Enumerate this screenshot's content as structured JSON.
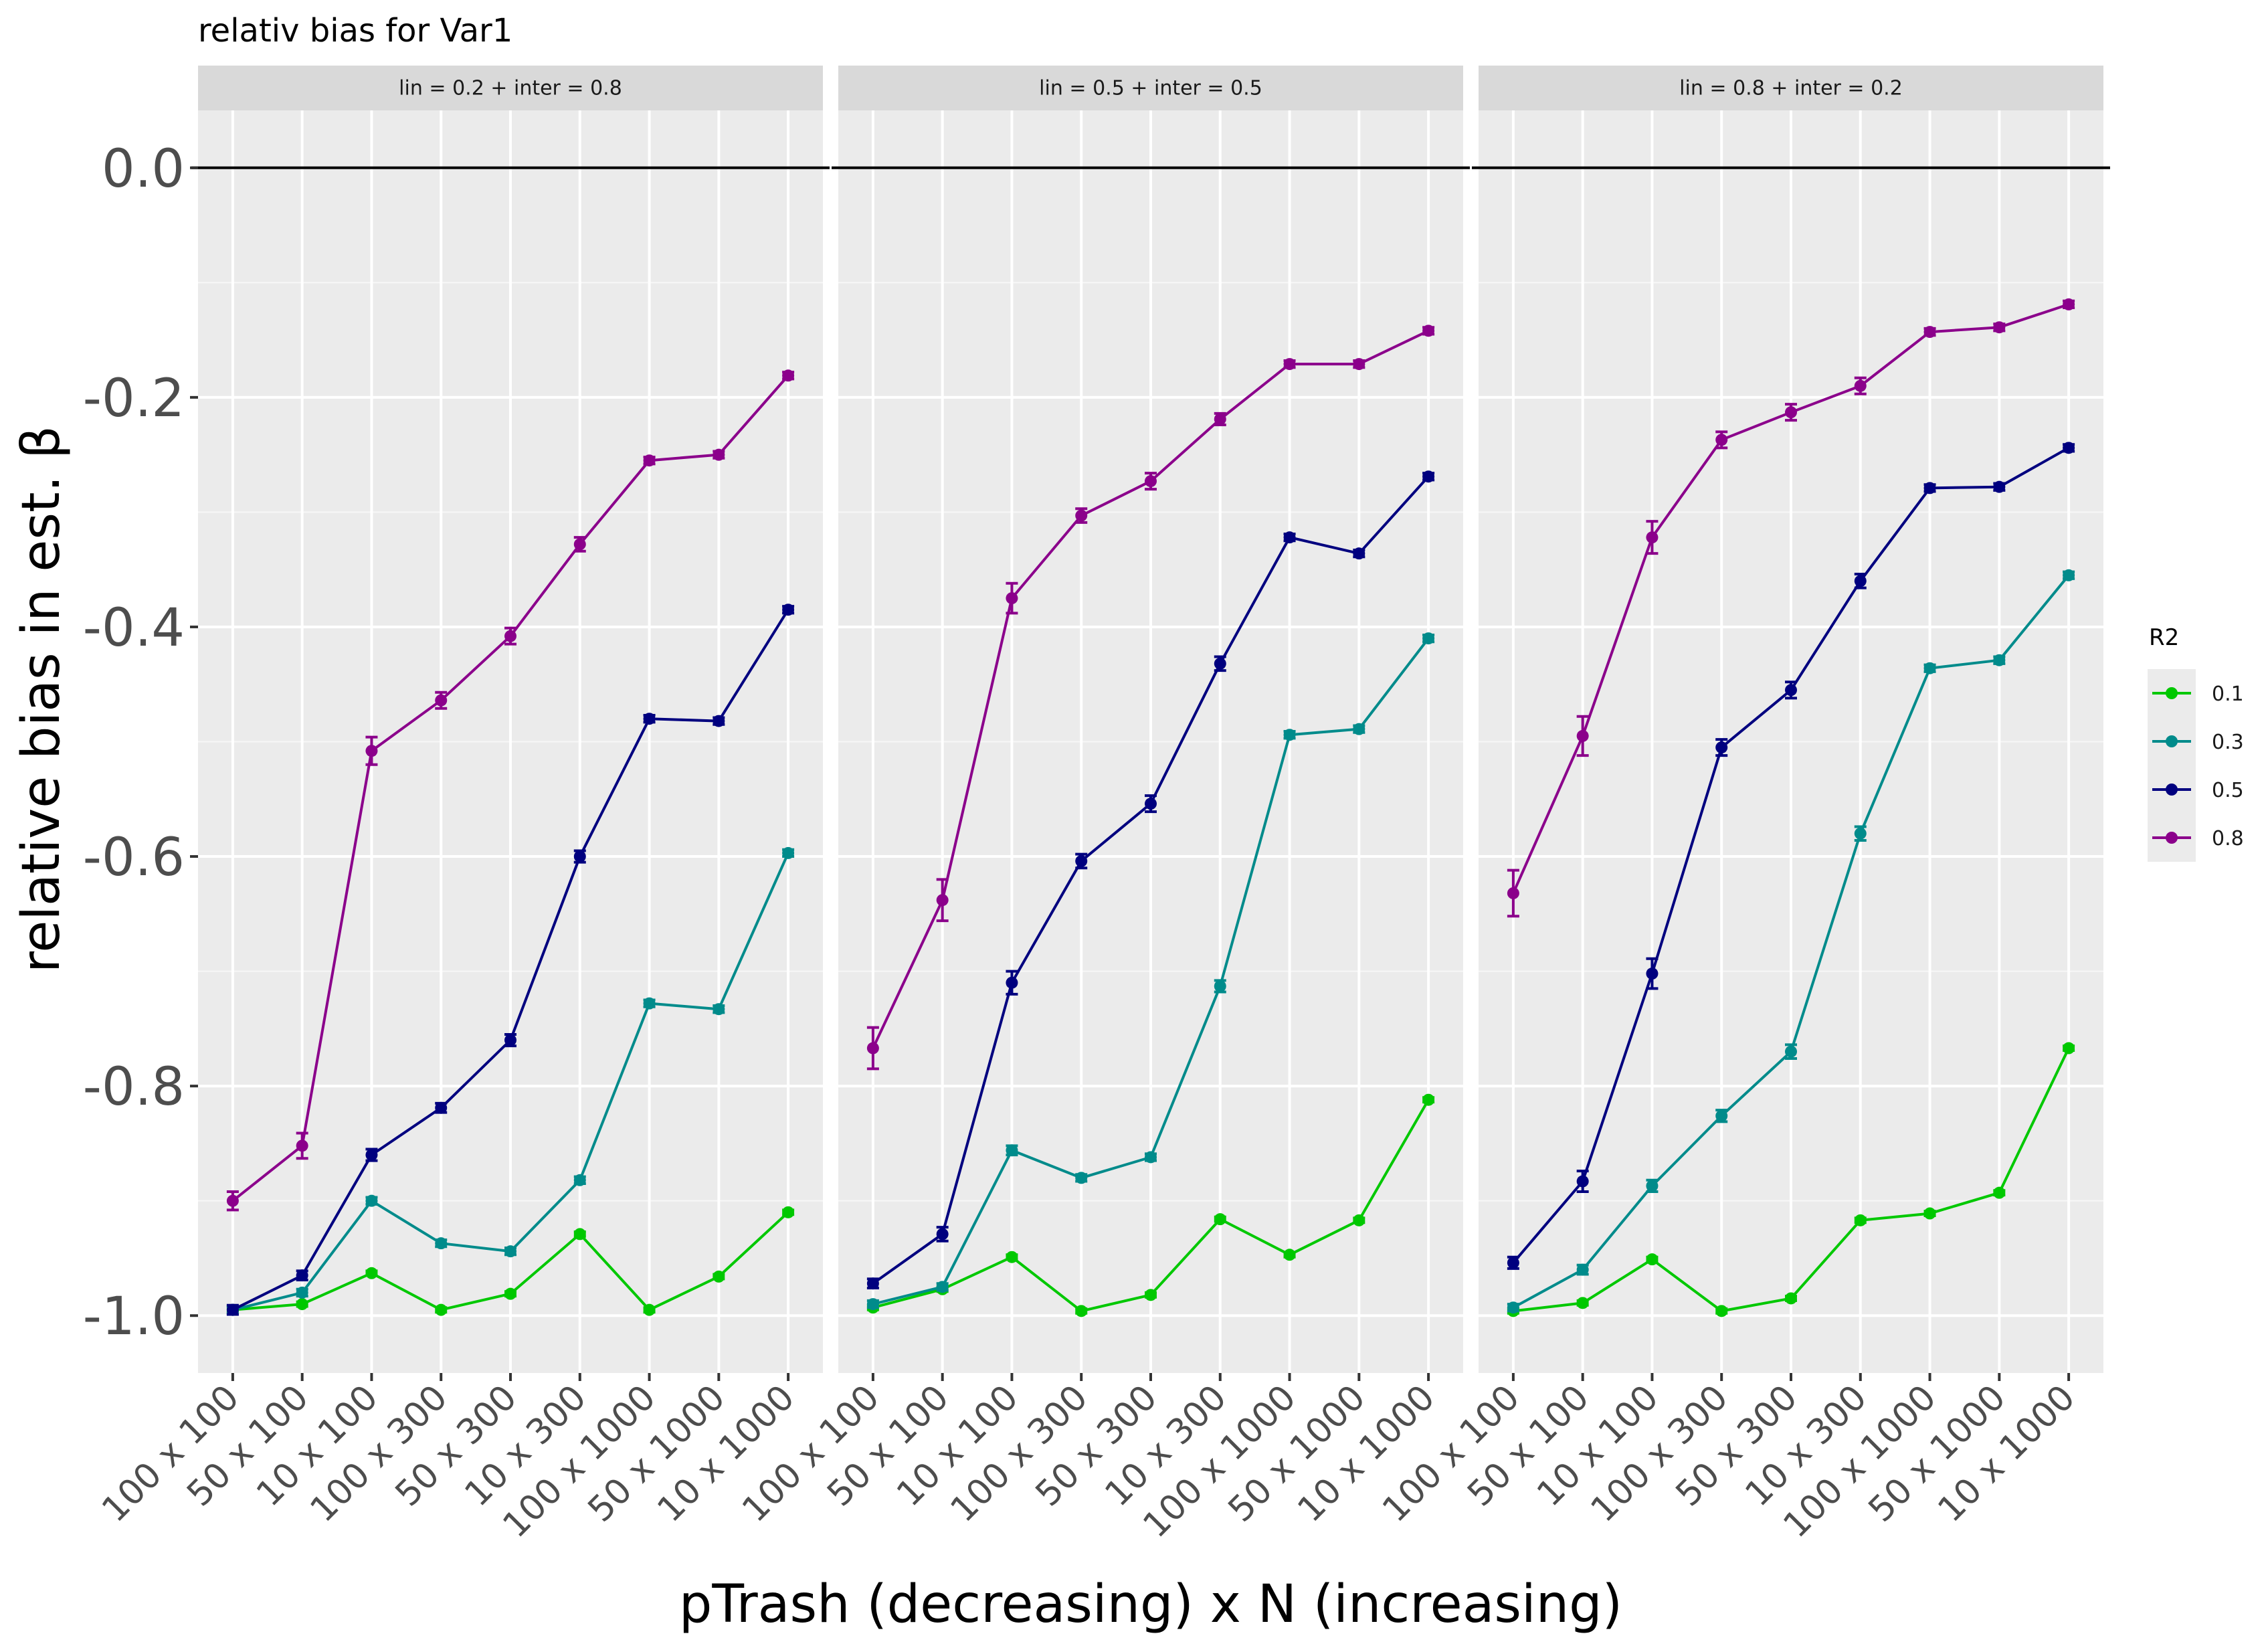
{
  "chart_data": {
    "type": "line",
    "title": "relativ bias for Var1",
    "xlabel": "pTrash (decreasing) x N (increasing)",
    "ylabel": "relative bias in est. β",
    "ylim": [
      -1.05,
      0.05
    ],
    "yticks": [
      "0.0",
      "-0.2",
      "-0.4",
      "-0.6",
      "-0.8",
      "-1.0"
    ],
    "ytick_values": [
      0.0,
      -0.2,
      -0.4,
      -0.6,
      -0.8,
      -1.0
    ],
    "categories": [
      "100 x 100",
      "50 x 100",
      "10 x 100",
      "100 x 300",
      "50 x 300",
      "10 x 300",
      "100 x 1000",
      "50 x 1000",
      "10 x 1000"
    ],
    "reference_line": 0.0,
    "grid": true,
    "legend": {
      "title": "R2",
      "position": "right",
      "entries": [
        {
          "label": "0.1",
          "color": "#00c800"
        },
        {
          "label": "0.3",
          "color": "#008b8b"
        },
        {
          "label": "0.5",
          "color": "#00007f"
        },
        {
          "label": "0.8",
          "color": "#8b008b"
        }
      ]
    },
    "panels": [
      {
        "strip": "lin = 0.2 + inter = 0.8",
        "series": [
          {
            "name": "0.1",
            "values": [
              -0.995,
              -0.99,
              -0.963,
              -0.995,
              -0.981,
              -0.929,
              -0.995,
              -0.966,
              -0.91
            ],
            "errors": [
              0.002,
              0.002,
              0.002,
              0.002,
              0.002,
              0.002,
              0.002,
              0.002,
              0.002
            ]
          },
          {
            "name": "0.3",
            "values": [
              -0.995,
              -0.98,
              -0.9,
              -0.937,
              -0.944,
              -0.882,
              -0.728,
              -0.733,
              -0.597
            ],
            "errors": [
              0.003,
              0.003,
              0.003,
              0.003,
              0.003,
              0.003,
              0.003,
              0.003,
              0.003
            ]
          },
          {
            "name": "0.5",
            "values": [
              -0.995,
              -0.965,
              -0.86,
              -0.819,
              -0.76,
              -0.6,
              -0.48,
              -0.482,
              -0.385
            ],
            "errors": [
              0.004,
              0.004,
              0.005,
              0.004,
              0.005,
              0.005,
              0.003,
              0.003,
              0.003
            ]
          },
          {
            "name": "0.8",
            "values": [
              -0.9,
              -0.852,
              -0.508,
              -0.464,
              -0.408,
              -0.328,
              -0.255,
              -0.25,
              -0.181
            ],
            "errors": [
              0.008,
              0.011,
              0.012,
              0.007,
              0.007,
              0.006,
              0.003,
              0.003,
              0.003
            ]
          }
        ]
      },
      {
        "strip": "lin = 0.5 + inter = 0.5",
        "series": [
          {
            "name": "0.1",
            "values": [
              -0.993,
              -0.977,
              -0.949,
              -0.996,
              -0.982,
              -0.916,
              -0.947,
              -0.917,
              -0.812
            ],
            "errors": [
              0.002,
              0.002,
              0.002,
              0.002,
              0.002,
              0.002,
              0.002,
              0.002,
              0.002
            ]
          },
          {
            "name": "0.3",
            "values": [
              -0.99,
              -0.975,
              -0.856,
              -0.88,
              -0.862,
              -0.713,
              -0.494,
              -0.489,
              -0.41
            ],
            "errors": [
              0.003,
              0.003,
              0.004,
              0.003,
              0.003,
              0.005,
              0.003,
              0.003,
              0.003
            ]
          },
          {
            "name": "0.5",
            "values": [
              -0.972,
              -0.929,
              -0.71,
              -0.604,
              -0.554,
              -0.432,
              -0.322,
              -0.336,
              -0.269
            ],
            "errors": [
              0.004,
              0.006,
              0.01,
              0.006,
              0.007,
              0.006,
              0.003,
              0.003,
              0.003
            ]
          },
          {
            "name": "0.8",
            "values": [
              -0.767,
              -0.638,
              -0.375,
              -0.303,
              -0.273,
              -0.219,
              -0.171,
              -0.171,
              -0.142
            ],
            "errors": [
              0.018,
              0.018,
              0.013,
              0.006,
              0.007,
              0.005,
              0.003,
              0.003,
              0.003
            ]
          }
        ]
      },
      {
        "strip": "lin = 0.8 + inter = 0.2",
        "series": [
          {
            "name": "0.1",
            "values": [
              -0.996,
              -0.989,
              -0.951,
              -0.996,
              -0.985,
              -0.917,
              -0.911,
              -0.893,
              -0.767
            ],
            "errors": [
              0.002,
              0.002,
              0.002,
              0.002,
              0.002,
              0.002,
              0.002,
              0.002,
              0.002
            ]
          },
          {
            "name": "0.3",
            "values": [
              -0.993,
              -0.96,
              -0.887,
              -0.826,
              -0.77,
              -0.58,
              -0.436,
              -0.429,
              -0.355
            ],
            "errors": [
              0.003,
              0.004,
              0.005,
              0.005,
              0.006,
              0.006,
              0.003,
              0.003,
              0.003
            ]
          },
          {
            "name": "0.5",
            "values": [
              -0.954,
              -0.883,
              -0.702,
              -0.505,
              -0.455,
              -0.36,
              -0.279,
              -0.278,
              -0.244
            ],
            "errors": [
              0.005,
              0.009,
              0.013,
              0.007,
              0.007,
              0.006,
              0.003,
              0.003,
              0.003
            ]
          },
          {
            "name": "0.8",
            "values": [
              -0.632,
              -0.495,
              -0.322,
              -0.237,
              -0.213,
              -0.19,
              -0.143,
              -0.139,
              -0.119
            ],
            "errors": [
              0.02,
              0.017,
              0.014,
              0.007,
              0.007,
              0.007,
              0.003,
              0.003,
              0.003
            ]
          }
        ]
      }
    ]
  }
}
